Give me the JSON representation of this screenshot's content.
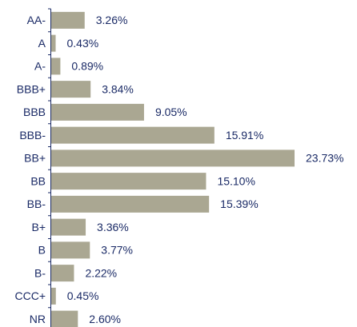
{
  "chart_data": {
    "type": "bar",
    "orientation": "horizontal",
    "categories": [
      "AA-",
      "A",
      "A-",
      "BBB+",
      "BBB",
      "BBB-",
      "BB+",
      "BB",
      "BB-",
      "B+",
      "B",
      "B-",
      "CCC+",
      "NR"
    ],
    "values": [
      3.26,
      0.43,
      0.89,
      3.84,
      9.05,
      15.91,
      23.73,
      15.1,
      15.39,
      3.36,
      3.77,
      2.22,
      0.45,
      2.6
    ],
    "value_labels": [
      "3.26%",
      "0.43%",
      "0.89%",
      "3.84%",
      "9.05%",
      "15.91%",
      "23.73%",
      "15.10%",
      "15.39%",
      "3.36%",
      "3.77%",
      "2.22%",
      "0.45%",
      "2.60%"
    ],
    "color": "#aaa792"
  }
}
